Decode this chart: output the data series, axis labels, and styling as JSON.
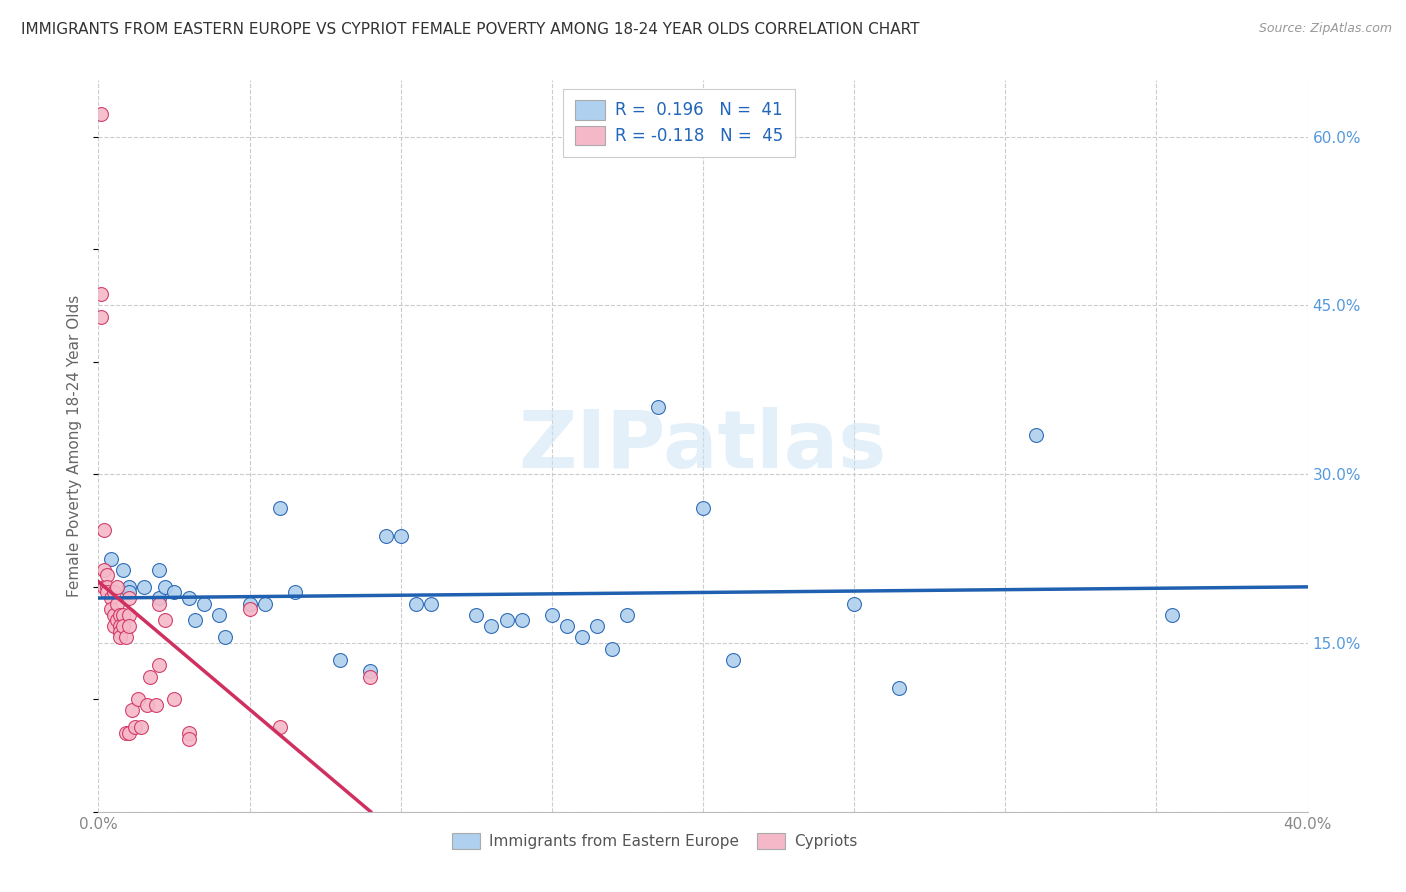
{
  "title": "IMMIGRANTS FROM EASTERN EUROPE VS CYPRIOT FEMALE POVERTY AMONG 18-24 YEAR OLDS CORRELATION CHART",
  "source": "Source: ZipAtlas.com",
  "ylabel": "Female Poverty Among 18-24 Year Olds",
  "xlim": [
    0,
    0.4
  ],
  "ylim": [
    0,
    0.65
  ],
  "blue_R": 0.196,
  "blue_N": 41,
  "pink_R": -0.118,
  "pink_N": 45,
  "blue_color": "#afd0ee",
  "pink_color": "#f5b8c8",
  "blue_line_color": "#2060b0",
  "pink_line_color": "#d03060",
  "pink_dash_color": "#e0a0b8",
  "watermark": "ZIPatlas",
  "legend_label_blue": "Immigrants from Eastern Europe",
  "legend_label_pink": "Cypriots",
  "blue_x": [
    0.004,
    0.008,
    0.01,
    0.01,
    0.015,
    0.02,
    0.02,
    0.022,
    0.025,
    0.03,
    0.032,
    0.035,
    0.04,
    0.042,
    0.05,
    0.055,
    0.06,
    0.065,
    0.08,
    0.09,
    0.095,
    0.1,
    0.105,
    0.11,
    0.125,
    0.13,
    0.135,
    0.14,
    0.15,
    0.155,
    0.16,
    0.165,
    0.17,
    0.175,
    0.185,
    0.2,
    0.21,
    0.25,
    0.265,
    0.31,
    0.355
  ],
  "blue_y": [
    0.225,
    0.215,
    0.2,
    0.195,
    0.2,
    0.215,
    0.19,
    0.2,
    0.195,
    0.19,
    0.17,
    0.185,
    0.175,
    0.155,
    0.185,
    0.185,
    0.27,
    0.195,
    0.135,
    0.125,
    0.245,
    0.245,
    0.185,
    0.185,
    0.175,
    0.165,
    0.17,
    0.17,
    0.175,
    0.165,
    0.155,
    0.165,
    0.145,
    0.175,
    0.36,
    0.27,
    0.135,
    0.185,
    0.11,
    0.335,
    0.175
  ],
  "pink_x": [
    0.001,
    0.001,
    0.001,
    0.002,
    0.002,
    0.002,
    0.003,
    0.003,
    0.003,
    0.004,
    0.004,
    0.005,
    0.005,
    0.005,
    0.006,
    0.006,
    0.006,
    0.007,
    0.007,
    0.007,
    0.007,
    0.008,
    0.008,
    0.009,
    0.009,
    0.01,
    0.01,
    0.01,
    0.01,
    0.011,
    0.012,
    0.013,
    0.014,
    0.016,
    0.017,
    0.019,
    0.02,
    0.02,
    0.022,
    0.025,
    0.03,
    0.03,
    0.05,
    0.06,
    0.09
  ],
  "pink_y": [
    0.62,
    0.46,
    0.44,
    0.25,
    0.215,
    0.2,
    0.21,
    0.2,
    0.195,
    0.19,
    0.18,
    0.195,
    0.175,
    0.165,
    0.2,
    0.185,
    0.17,
    0.175,
    0.165,
    0.16,
    0.155,
    0.175,
    0.165,
    0.155,
    0.07,
    0.19,
    0.175,
    0.165,
    0.07,
    0.09,
    0.075,
    0.1,
    0.075,
    0.095,
    0.12,
    0.095,
    0.185,
    0.13,
    0.17,
    0.1,
    0.07,
    0.065,
    0.18,
    0.075,
    0.12
  ],
  "ytick_positions": [
    0.0,
    0.15,
    0.3,
    0.45,
    0.6
  ],
  "ytick_labels": [
    "",
    "15.0%",
    "30.0%",
    "45.0%",
    "60.0%"
  ],
  "xtick_positions": [
    0.0,
    0.05,
    0.1,
    0.15,
    0.2,
    0.25,
    0.3,
    0.35,
    0.4
  ],
  "xtick_labels": [
    "0.0%",
    "",
    "",
    "",
    "",
    "",
    "",
    "",
    "40.0%"
  ]
}
